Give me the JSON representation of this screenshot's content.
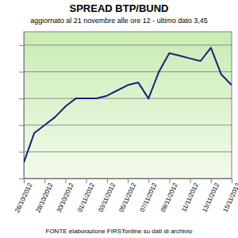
{
  "chart_data": {
    "type": "line",
    "title": "SPREAD BTP/BUND",
    "subtitle": "aggiornato al 21 novembre alle ore 12 - ultimo dato 3,45",
    "annotations": [
      "FONTE elaborazione FIRSTonline su dati di archivio"
    ],
    "categories": [
      "26/10/2012",
      null,
      "28/10/2012",
      null,
      "30/10/2012",
      null,
      "01/11/2012",
      null,
      "03/11/2012",
      null,
      "05/11/2012",
      null,
      "07/11/2012",
      null,
      "09/11/2012",
      null,
      "11/11/2012",
      null,
      "13/11/2012",
      null,
      "15/11/2012"
    ],
    "values": [
      3.16,
      3.27,
      3.3,
      3.33,
      3.37,
      3.4,
      3.4,
      3.4,
      3.41,
      3.43,
      3.45,
      3.46,
      3.4,
      3.5,
      3.57,
      3.56,
      3.55,
      3.54,
      3.59,
      3.49,
      3.45
    ],
    "color": "#1f1f7a",
    "ylim": [
      3.1,
      3.65
    ],
    "yticks": [
      3.1,
      3.2,
      3.3,
      3.4,
      3.5,
      3.6
    ],
    "grid": true,
    "tick_labels": "x"
  }
}
